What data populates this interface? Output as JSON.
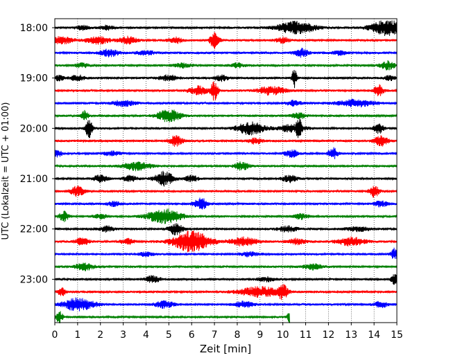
{
  "chart_data": {
    "type": "line",
    "title": "",
    "xlabel": "Zeit  [min]",
    "ylabel": "UTC (Lokalzeit = UTC + 01:00)",
    "xlim": [
      0,
      15
    ],
    "x_ticks": [
      "0",
      "1",
      "2",
      "3",
      "4",
      "5",
      "6",
      "7",
      "8",
      "9",
      "10",
      "11",
      "12",
      "13",
      "14",
      "15"
    ],
    "y_ticks": [
      "18:00",
      "19:00",
      "20:00",
      "21:00",
      "22:00",
      "23:00"
    ],
    "grid": "vertical dotted",
    "trace_interval_min": 15,
    "trace_colors": [
      "#000000",
      "#ff0000",
      "#0000ff",
      "#008000"
    ],
    "traces": [
      {
        "start": "18:00",
        "end_min": 15,
        "bursts": [
          [
            1.2,
            0.3,
            3
          ],
          [
            2.3,
            0.3,
            3
          ],
          [
            10.6,
            0.8,
            9
          ],
          [
            14.6,
            0.7,
            11
          ]
        ]
      },
      {
        "start": "18:15",
        "end_min": 15,
        "bursts": [
          [
            0.3,
            0.5,
            5
          ],
          [
            1.9,
            0.5,
            5
          ],
          [
            3.2,
            0.4,
            5
          ],
          [
            5.3,
            0.3,
            4
          ],
          [
            7.0,
            0.2,
            11
          ],
          [
            10.0,
            0.3,
            4
          ]
        ]
      },
      {
        "start": "18:30",
        "end_min": 15,
        "bursts": [
          [
            2.4,
            0.4,
            5
          ],
          [
            4.0,
            0.4,
            3
          ],
          [
            10.8,
            0.3,
            6
          ],
          [
            12.5,
            0.3,
            3
          ]
        ]
      },
      {
        "start": "18:45",
        "end_min": 15,
        "bursts": [
          [
            1.2,
            0.3,
            3
          ],
          [
            5.6,
            0.4,
            3
          ],
          [
            8.0,
            0.3,
            3
          ],
          [
            14.6,
            0.3,
            6
          ]
        ]
      },
      {
        "start": "19:00",
        "end_min": 15,
        "bursts": [
          [
            0.2,
            0.2,
            4
          ],
          [
            1.0,
            0.3,
            4
          ],
          [
            5.0,
            0.4,
            4
          ],
          [
            7.3,
            0.3,
            4
          ],
          [
            10.5,
            0.1,
            14
          ],
          [
            14.7,
            0.2,
            4
          ]
        ]
      },
      {
        "start": "19:15",
        "end_min": 15,
        "bursts": [
          [
            6.3,
            0.4,
            6
          ],
          [
            7.0,
            0.15,
            14
          ],
          [
            9.5,
            0.6,
            6
          ],
          [
            14.2,
            0.2,
            8
          ]
        ]
      },
      {
        "start": "19:30",
        "end_min": 15,
        "bursts": [
          [
            3.0,
            0.5,
            4
          ],
          [
            10.5,
            0.3,
            4
          ],
          [
            13.2,
            0.8,
            5
          ]
        ]
      },
      {
        "start": "19:45",
        "end_min": 15,
        "bursts": [
          [
            1.3,
            0.15,
            8
          ],
          [
            5.0,
            0.5,
            9
          ],
          [
            10.7,
            0.3,
            4
          ]
        ]
      },
      {
        "start": "20:00",
        "end_min": 15,
        "bursts": [
          [
            1.5,
            0.15,
            13
          ],
          [
            8.6,
            0.6,
            9
          ],
          [
            10.4,
            0.6,
            5
          ],
          [
            10.7,
            0.1,
            13
          ],
          [
            14.2,
            0.2,
            7
          ]
        ]
      },
      {
        "start": "20:15",
        "end_min": 15,
        "bursts": [
          [
            5.3,
            0.3,
            7
          ],
          [
            8.8,
            0.3,
            4
          ],
          [
            14.3,
            0.3,
            7
          ]
        ]
      },
      {
        "start": "20:30",
        "end_min": 15,
        "bursts": [
          [
            0.1,
            0.2,
            5
          ],
          [
            2.5,
            0.4,
            3
          ],
          [
            10.4,
            0.3,
            5
          ],
          [
            12.2,
            0.2,
            8
          ]
        ]
      },
      {
        "start": "20:45",
        "end_min": 15,
        "bursts": [
          [
            3.6,
            0.6,
            6
          ],
          [
            8.2,
            0.3,
            6
          ]
        ]
      },
      {
        "start": "21:00",
        "end_min": 15,
        "bursts": [
          [
            2.0,
            0.3,
            5
          ],
          [
            3.3,
            0.3,
            4
          ],
          [
            4.8,
            0.4,
            10
          ],
          [
            6.0,
            0.3,
            4
          ],
          [
            10.3,
            0.3,
            5
          ]
        ]
      },
      {
        "start": "21:15",
        "end_min": 15,
        "bursts": [
          [
            1.0,
            0.3,
            7
          ],
          [
            14.0,
            0.2,
            9
          ]
        ]
      },
      {
        "start": "21:30",
        "end_min": 15,
        "bursts": [
          [
            2.6,
            0.3,
            3
          ],
          [
            6.4,
            0.3,
            8
          ],
          [
            14.3,
            0.3,
            4
          ]
        ]
      },
      {
        "start": "21:45",
        "end_min": 15,
        "bursts": [
          [
            0.4,
            0.2,
            7
          ],
          [
            2.0,
            0.3,
            3
          ],
          [
            4.8,
            0.7,
            11
          ],
          [
            10.8,
            0.3,
            4
          ]
        ]
      },
      {
        "start": "22:00",
        "end_min": 15,
        "bursts": [
          [
            2.3,
            0.3,
            4
          ],
          [
            5.3,
            0.3,
            8
          ],
          [
            10.2,
            0.4,
            4
          ],
          [
            13.3,
            0.5,
            3
          ]
        ]
      },
      {
        "start": "22:15",
        "end_min": 15,
        "bursts": [
          [
            1.2,
            0.3,
            5
          ],
          [
            3.2,
            0.3,
            4
          ],
          [
            6.0,
            0.8,
            15
          ],
          [
            8.3,
            0.6,
            6
          ],
          [
            10.6,
            0.4,
            4
          ],
          [
            13.0,
            0.6,
            6
          ]
        ]
      },
      {
        "start": "22:30",
        "end_min": 15,
        "bursts": [
          [
            4.0,
            0.3,
            3
          ],
          [
            8.5,
            0.4,
            3
          ],
          [
            14.9,
            0.15,
            8
          ]
        ]
      },
      {
        "start": "22:45",
        "end_min": 15,
        "bursts": [
          [
            1.3,
            0.4,
            5
          ],
          [
            11.3,
            0.4,
            4
          ]
        ]
      },
      {
        "start": "23:00",
        "end_min": 15,
        "bursts": [
          [
            4.3,
            0.3,
            5
          ],
          [
            9.3,
            0.4,
            3
          ],
          [
            14.9,
            0.15,
            7
          ]
        ]
      },
      {
        "start": "23:15",
        "end_min": 15,
        "bursts": [
          [
            0.3,
            0.15,
            6
          ],
          [
            9.0,
            0.9,
            7
          ],
          [
            10.0,
            0.2,
            9
          ]
        ]
      },
      {
        "start": "23:30",
        "end_min": 15,
        "bursts": [
          [
            0.8,
            0.5,
            7
          ],
          [
            1.4,
            0.5,
            5
          ],
          [
            4.8,
            0.4,
            5
          ],
          [
            8.3,
            0.4,
            4
          ],
          [
            14.3,
            0.3,
            4
          ]
        ]
      },
      {
        "start": "23:45",
        "end_min": 10.3,
        "bursts": [
          [
            0.2,
            0.15,
            8
          ],
          [
            10.3,
            0.1,
            8
          ]
        ]
      }
    ]
  }
}
